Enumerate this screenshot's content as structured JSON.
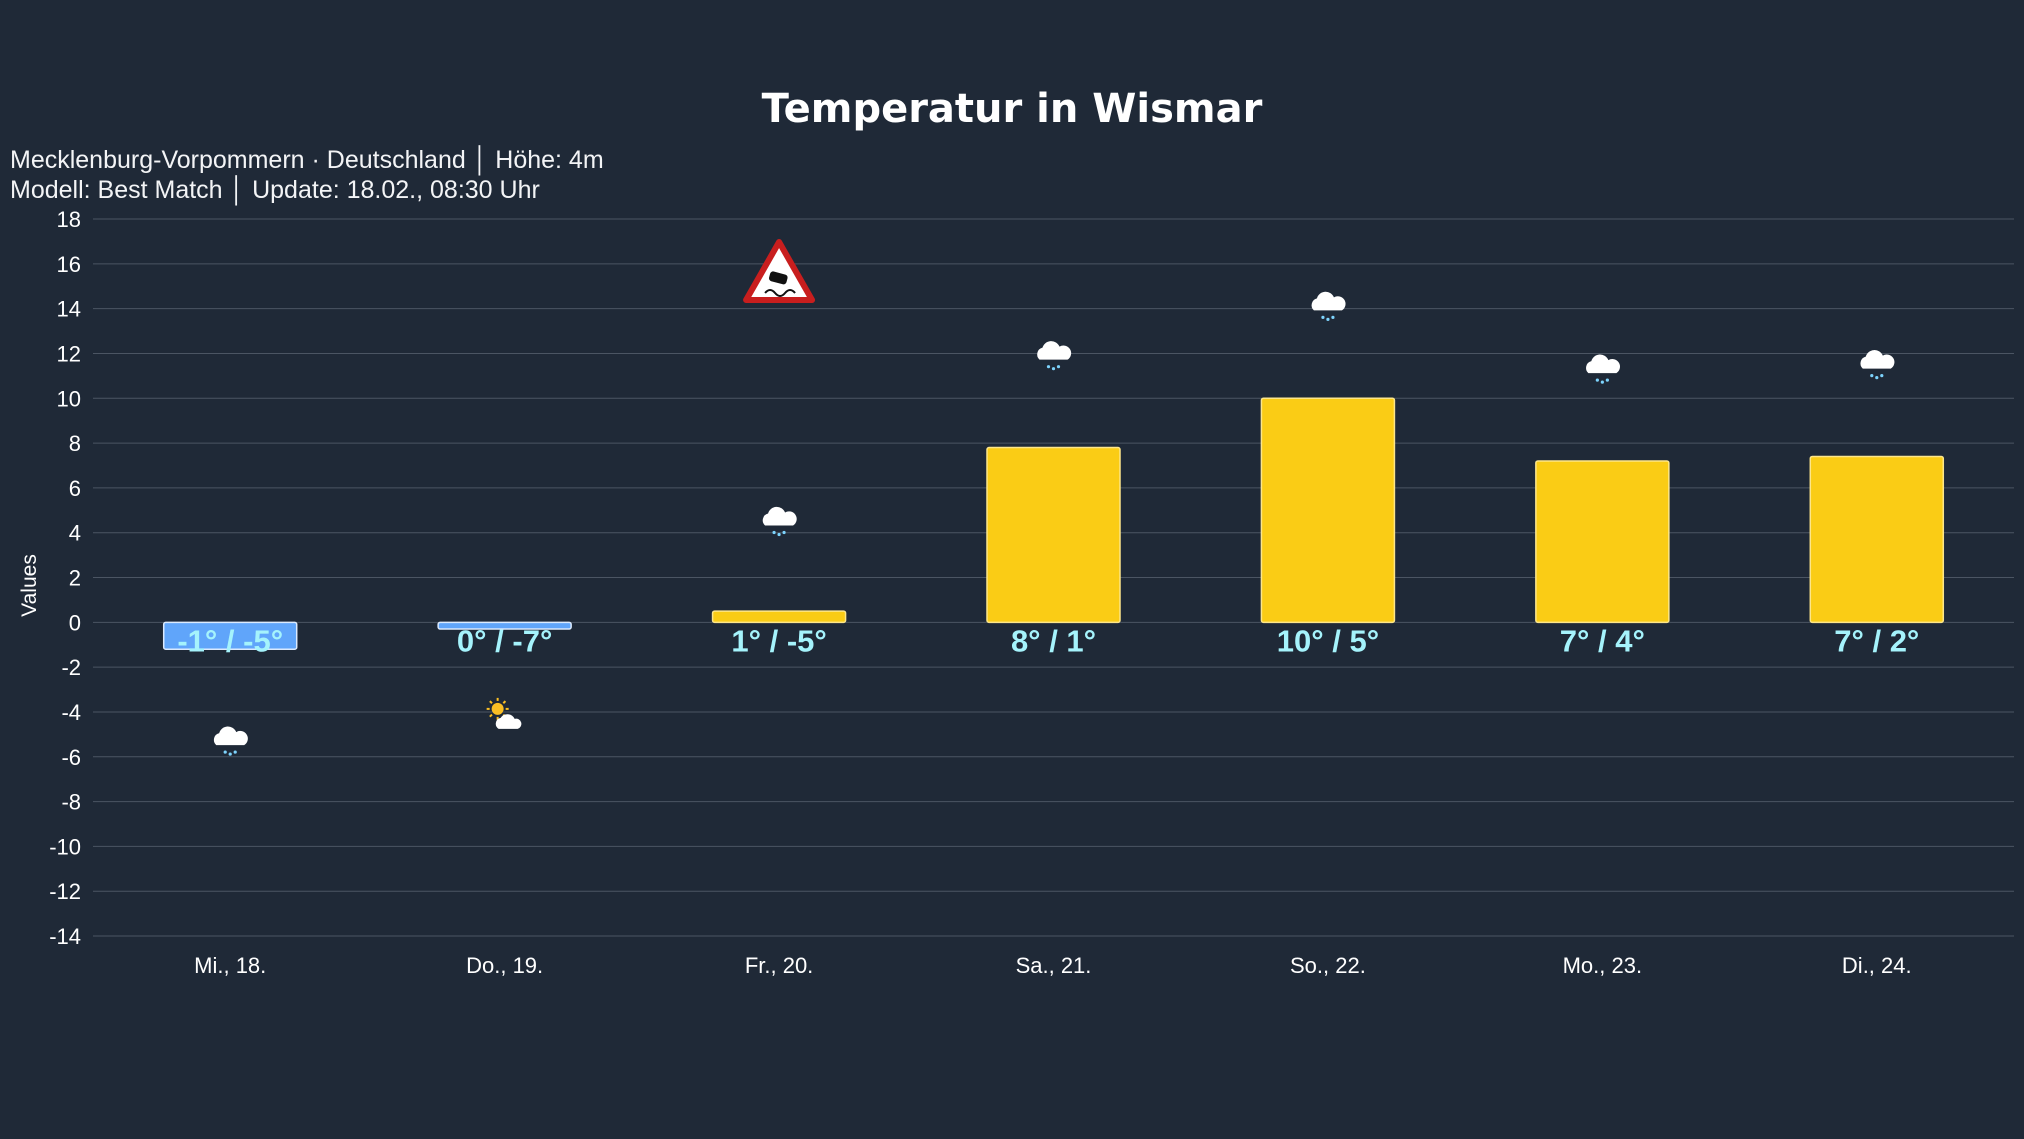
{
  "chart_data": {
    "type": "bar",
    "title": "Temperatur in Wismar",
    "subtitle_lines": [
      "Mecklenburg-Vorpommern · Deutschland │ Höhe: 4m",
      "Modell: Best Match │ Update: 18.02., 08:30 Uhr"
    ],
    "ylabel": "Values",
    "xlabel": "",
    "ylim": [
      -14,
      18
    ],
    "yticks": [
      18,
      16,
      14,
      12,
      10,
      8,
      6,
      4,
      2,
      0,
      -2,
      -4,
      -6,
      -8,
      -10,
      -12,
      -14
    ],
    "grid": true,
    "categories": [
      "Mi., 18.",
      "Do., 19.",
      "Fr., 20.",
      "Sa., 21.",
      "So., 22.",
      "Mo., 23.",
      "Di., 24."
    ],
    "values": [
      -1.2,
      -0.3,
      0.5,
      7.8,
      10.0,
      7.2,
      7.4
    ],
    "data_labels": [
      "-1° / -5°",
      "0° / -7°",
      "1° / -5°",
      "8° / 1°",
      "10° / 5°",
      "7° / 4°",
      "7° / 2°"
    ],
    "weather_icons": [
      {
        "icon": "snow-cloud-icon",
        "y": -5.3
      },
      {
        "icon": "sun-cloud-icon",
        "y": -4.4
      },
      {
        "icon": "snow-cloud-icon",
        "y": 4.5
      },
      {
        "icon": "snow-cloud-icon",
        "y": 11.9
      },
      {
        "icon": "snow-cloud-icon",
        "y": 14.1
      },
      {
        "icon": "snow-cloud-icon",
        "y": 11.3
      },
      {
        "icon": "snow-cloud-icon",
        "y": 11.5
      }
    ],
    "warnings": [
      {
        "category_index": 2,
        "icon": "slippery-road-warning-icon",
        "y": 15.5
      }
    ],
    "colors": {
      "positive": "#facc15",
      "negative": "#60a5fa",
      "label": "#a5f3fc",
      "background": "#1f2937",
      "grid": "#4b5563"
    }
  }
}
